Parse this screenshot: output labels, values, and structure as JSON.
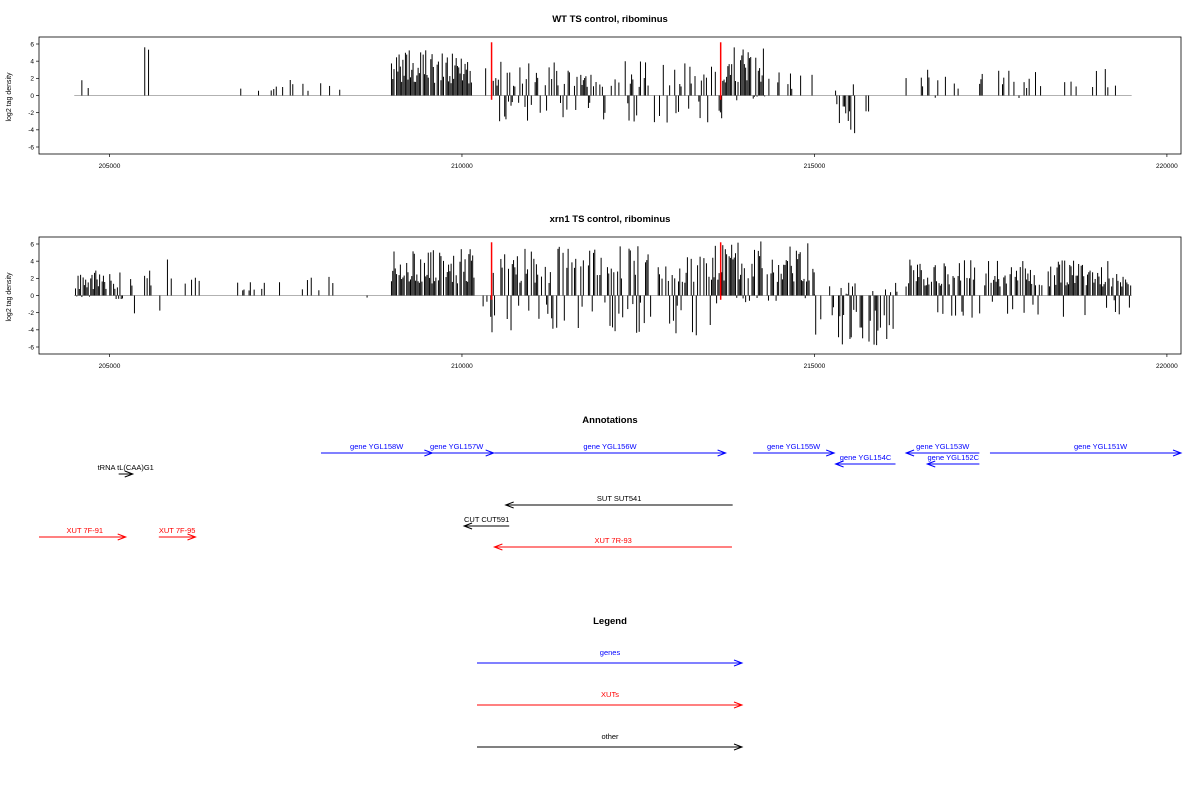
{
  "chart_data": [
    {
      "type": "bar",
      "title": "WT TS control, ribominus",
      "ylabel": "log2 tag density",
      "xlim": [
        204000,
        220200
      ],
      "ylim": [
        -6,
        6
      ],
      "yticks": [
        -6,
        -4,
        -2,
        0,
        2,
        4,
        6
      ],
      "xticks": [
        205000,
        210000,
        215000,
        220000
      ],
      "markers": [
        210420,
        213670
      ],
      "marker_color": "#ff0000",
      "bar_color": "#000000",
      "regions": [
        {
          "from": 204500,
          "to": 204700,
          "pattern": "sparse",
          "amp": 2.5,
          "neg": 0
        },
        {
          "from": 205500,
          "to": 205560,
          "pattern": "spike",
          "amp": 5.8,
          "neg": 0
        },
        {
          "from": 206700,
          "to": 208300,
          "pattern": "sparse",
          "amp": 2.0,
          "neg": 1.2
        },
        {
          "from": 209000,
          "to": 210150,
          "pattern": "dense",
          "amp": 5.4,
          "neg": 0
        },
        {
          "from": 210300,
          "to": 213700,
          "pattern": "mixed",
          "amp": 4.0,
          "neg": 3.2
        },
        {
          "from": 213700,
          "to": 214300,
          "pattern": "dense",
          "amp": 6.0,
          "neg": 0.6
        },
        {
          "from": 214300,
          "to": 215000,
          "pattern": "sparse",
          "amp": 3.0,
          "neg": 0
        },
        {
          "from": 215300,
          "to": 215800,
          "pattern": "negative",
          "amp": 2.0,
          "neg": 4.4
        },
        {
          "from": 216300,
          "to": 219300,
          "pattern": "sparse",
          "amp": 3.2,
          "neg": 0.8
        }
      ]
    },
    {
      "type": "bar",
      "title": "xrn1 TS control, ribominus",
      "ylabel": "log2 tag density",
      "xlim": [
        204000,
        220200
      ],
      "ylim": [
        -6,
        6
      ],
      "yticks": [
        -6,
        -4,
        -2,
        0,
        2,
        4,
        6
      ],
      "xticks": [
        205000,
        210000,
        215000,
        220000
      ],
      "markers": [
        210420,
        213670
      ],
      "marker_color": "#ff0000",
      "bar_color": "#000000",
      "regions": [
        {
          "from": 204500,
          "to": 205200,
          "pattern": "dense",
          "amp": 3.0,
          "neg": 0.5
        },
        {
          "from": 205300,
          "to": 206300,
          "pattern": "sparse",
          "amp": 4.5,
          "neg": 2.2
        },
        {
          "from": 206800,
          "to": 208700,
          "pattern": "sparse",
          "amp": 2.2,
          "neg": 0.8
        },
        {
          "from": 209000,
          "to": 210200,
          "pattern": "dense",
          "amp": 5.6,
          "neg": 0
        },
        {
          "from": 210300,
          "to": 213700,
          "pattern": "mixed",
          "amp": 5.8,
          "neg": 4.8
        },
        {
          "from": 213700,
          "to": 215000,
          "pattern": "dense",
          "amp": 6.3,
          "neg": 0.8
        },
        {
          "from": 215000,
          "to": 216200,
          "pattern": "negative",
          "amp": 1.5,
          "neg": 5.8
        },
        {
          "from": 216300,
          "to": 219500,
          "pattern": "dense",
          "amp": 4.2,
          "neg": 2.8
        }
      ]
    }
  ],
  "annotations": {
    "title": "Annotations",
    "items": [
      {
        "label": "gene YGL158W",
        "from": 208000,
        "to": 209580,
        "row": 0,
        "dir": 1,
        "kind": "gene"
      },
      {
        "label": "gene YGL157W",
        "from": 209400,
        "to": 210450,
        "row": 0,
        "dir": 1,
        "kind": "gene"
      },
      {
        "label": "gene YGL156W",
        "from": 210460,
        "to": 213740,
        "row": 0,
        "dir": 1,
        "kind": "gene"
      },
      {
        "label": "gene YGL155W",
        "from": 214130,
        "to": 215280,
        "row": 0,
        "dir": 1,
        "kind": "gene"
      },
      {
        "label": "gene YGL154C",
        "from": 215300,
        "to": 216150,
        "row": 1,
        "dir": -1,
        "kind": "gene"
      },
      {
        "label": "gene YGL153W",
        "from": 216300,
        "to": 217340,
        "row": 0,
        "dir": -1,
        "kind": "gene"
      },
      {
        "label": "gene YGL152C",
        "from": 216600,
        "to": 217340,
        "row": 1,
        "dir": -1,
        "kind": "gene"
      },
      {
        "label": "gene YGL151W",
        "from": 217490,
        "to": 220200,
        "row": 0,
        "dir": 1,
        "kind": "gene",
        "label_at": 219060
      },
      {
        "label": "tRNA tL(CAA)G1",
        "from": 205130,
        "to": 205330,
        "row": 2,
        "dir": 1,
        "kind": "other"
      },
      {
        "label": "SUT SUT541",
        "from": 210620,
        "to": 213840,
        "row": 3,
        "dir": -1,
        "kind": "other"
      },
      {
        "label": "CUT CUT591",
        "from": 210030,
        "to": 210670,
        "row": 4,
        "dir": -1,
        "kind": "other"
      },
      {
        "label": "XUT 7F-91",
        "from": 204000,
        "to": 205230,
        "row": 5,
        "dir": 1,
        "kind": "xut",
        "label_at": 204650
      },
      {
        "label": "XUT 7F-95",
        "from": 205700,
        "to": 206220,
        "row": 5,
        "dir": 1,
        "kind": "xut"
      },
      {
        "label": "XUT 7R-93",
        "from": 210460,
        "to": 213830,
        "row": 6,
        "dir": -1,
        "kind": "xut"
      }
    ]
  },
  "legend": {
    "title": "Legend",
    "entries": [
      {
        "label": "genes",
        "kind": "gene"
      },
      {
        "label": "XUTs",
        "kind": "xut"
      },
      {
        "label": "other",
        "kind": "other"
      }
    ]
  },
  "colors": {
    "gene": "#0000ff",
    "xut": "#ff0000",
    "other": "#000000",
    "axis": "#000000",
    "baseline": "#999999"
  }
}
